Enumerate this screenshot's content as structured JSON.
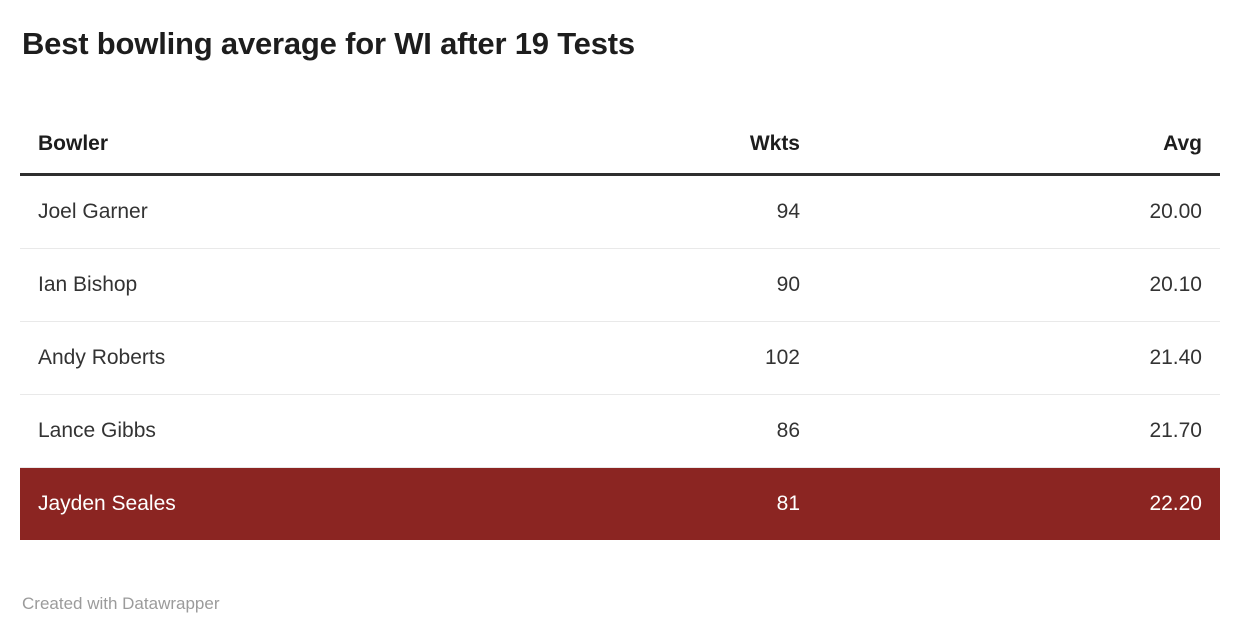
{
  "chart_data": {
    "type": "table",
    "title": "Best bowling average for WI after 19 Tests",
    "columns": [
      "Bowler",
      "Wkts",
      "Avg"
    ],
    "rows": [
      {
        "bowler": "Joel Garner",
        "wkts": "94",
        "avg": "20.00",
        "highlighted": false
      },
      {
        "bowler": "Ian Bishop",
        "wkts": "90",
        "avg": "20.10",
        "highlighted": false
      },
      {
        "bowler": "Andy Roberts",
        "wkts": "102",
        "avg": "21.40",
        "highlighted": false
      },
      {
        "bowler": "Lance Gibbs",
        "wkts": "86",
        "avg": "21.70",
        "highlighted": false
      },
      {
        "bowler": "Jayden Seales",
        "wkts": "81",
        "avg": "22.20",
        "highlighted": true
      }
    ],
    "attribution": "Created with Datawrapper",
    "layout_hints": {
      "highlighted_row_index": 4,
      "numeric_columns_right_aligned": true,
      "grid": "horizontal-dividers"
    }
  },
  "colors": {
    "highlight_bg": "#8b2522",
    "highlight_text": "#ffffff",
    "header_border": "#2e2e2e",
    "row_divider": "#e9e9e9",
    "body_text": "#333333",
    "title_text": "#1d1d1d",
    "footer_text": "#9b9b9b"
  }
}
